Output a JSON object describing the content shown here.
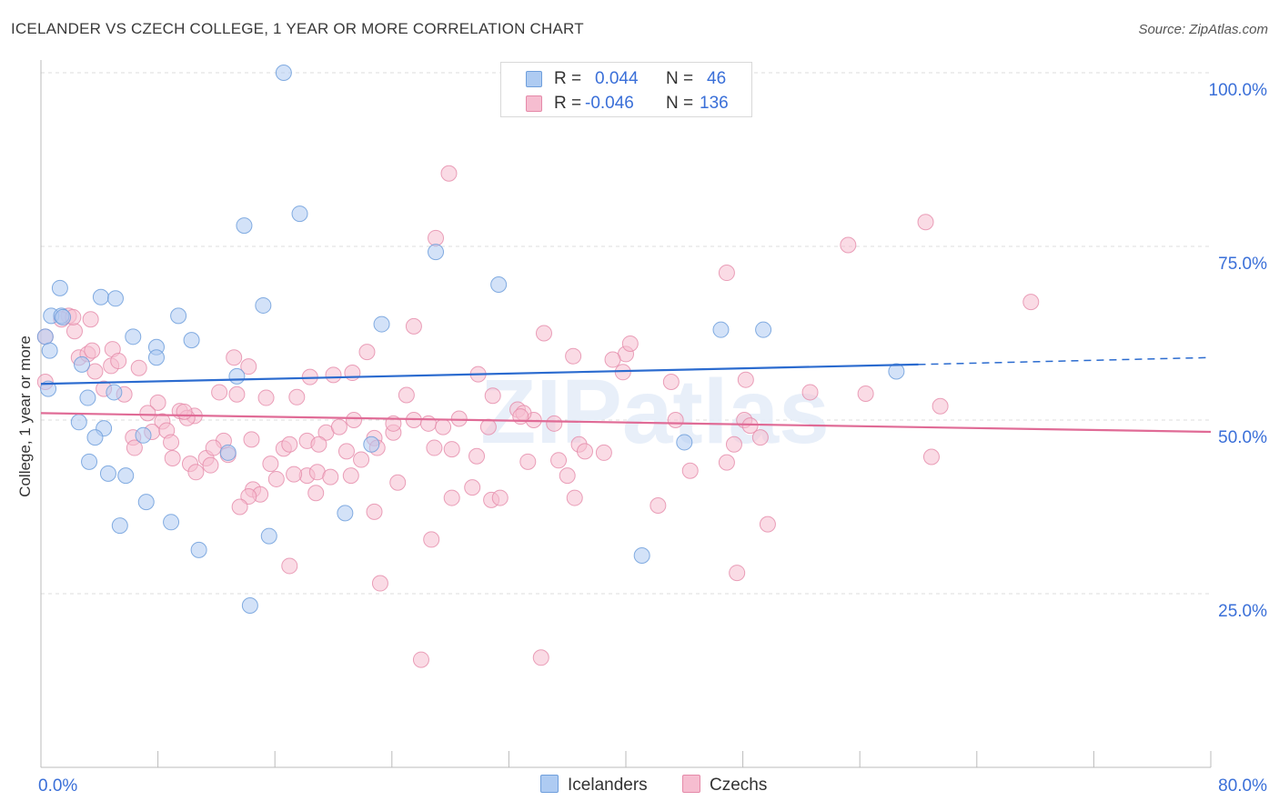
{
  "header": {
    "title": "ICELANDER VS CZECH COLLEGE, 1 YEAR OR MORE CORRELATION CHART",
    "source": "Source: ZipAtlas.com"
  },
  "watermark": "ZIPatlas",
  "stats": [
    {
      "r_label": "R =",
      "r_value": "0.044",
      "n_label": "N =",
      "n_value": "46"
    },
    {
      "r_label": "R =",
      "r_value": "-0.046",
      "n_label": "N =",
      "n_value": "136"
    }
  ],
  "colors": {
    "icelanders_fill": "#aecbf2",
    "icelanders_stroke": "#6f9fdc",
    "icelanders_line": "#2b6bcf",
    "czechs_fill": "#f6bdd0",
    "czechs_stroke": "#e58aa9",
    "czechs_line": "#e06b96",
    "axis_text": "#3a6fd8",
    "grid": "#dcdcdc"
  },
  "chart_data": {
    "type": "scatter",
    "title": "ICELANDER VS CZECH COLLEGE, 1 YEAR OR MORE CORRELATION CHART",
    "xlabel": "",
    "ylabel": "College, 1 year or more",
    "xlim": [
      0,
      80
    ],
    "ylim": [
      2,
      102
    ],
    "x_tick_labels": [
      "0.0%",
      "80.0%"
    ],
    "y_ticks": [
      25,
      50,
      75,
      100
    ],
    "y_tick_labels": [
      "25.0%",
      "50.0%",
      "75.0%",
      "100.0%"
    ],
    "grid": true,
    "legend_placement": "bottom",
    "series": [
      {
        "name": "Icelanders",
        "trend": {
          "x": [
            0,
            60
          ],
          "y": [
            55.2,
            58.0
          ],
          "dashed_extension_to_x": 80,
          "dashed_extension_y": 59.0
        },
        "points": [
          [
            16.6,
            100
          ],
          [
            1.3,
            69
          ],
          [
            4.1,
            67.7
          ],
          [
            5.1,
            67.5
          ],
          [
            0.7,
            65
          ],
          [
            1.4,
            65
          ],
          [
            1.5,
            64.8
          ],
          [
            0.3,
            62
          ],
          [
            0.6,
            60
          ],
          [
            6.3,
            62
          ],
          [
            9.4,
            65
          ],
          [
            10.3,
            61.5
          ],
          [
            7.9,
            60.5
          ],
          [
            7.9,
            59
          ],
          [
            2.8,
            58
          ],
          [
            13.9,
            78
          ],
          [
            17.7,
            79.7
          ],
          [
            27.0,
            74.2
          ],
          [
            31.3,
            69.5
          ],
          [
            15.2,
            66.5
          ],
          [
            23.3,
            63.8
          ],
          [
            46.5,
            63
          ],
          [
            49.4,
            63
          ],
          [
            58.5,
            57
          ],
          [
            0.5,
            54.5
          ],
          [
            3.2,
            53.2
          ],
          [
            5.0,
            54
          ],
          [
            13.4,
            56.3
          ],
          [
            2.6,
            49.7
          ],
          [
            4.3,
            48.8
          ],
          [
            3.7,
            47.5
          ],
          [
            7.0,
            47.8
          ],
          [
            12.8,
            45.3
          ],
          [
            3.3,
            44
          ],
          [
            4.6,
            42.3
          ],
          [
            5.8,
            42
          ],
          [
            22.6,
            46.5
          ],
          [
            7.2,
            38.2
          ],
          [
            5.4,
            34.8
          ],
          [
            8.9,
            35.3
          ],
          [
            15.6,
            33.3
          ],
          [
            20.8,
            36.6
          ],
          [
            10.8,
            31.3
          ],
          [
            41.1,
            30.5
          ],
          [
            14.3,
            23.3
          ],
          [
            44.0,
            46.8
          ]
        ]
      },
      {
        "name": "Czechs",
        "trend": {
          "x": [
            0,
            80
          ],
          "y": [
            51.0,
            48.3
          ]
        },
        "points": [
          [
            27.9,
            85.5
          ],
          [
            27.0,
            76.2
          ],
          [
            60.5,
            78.5
          ],
          [
            55.2,
            75.2
          ],
          [
            46.9,
            71.2
          ],
          [
            67.7,
            67
          ],
          [
            1.9,
            65
          ],
          [
            3.4,
            64.5
          ],
          [
            2.3,
            62.8
          ],
          [
            0.3,
            62
          ],
          [
            25.5,
            63.5
          ],
          [
            34.4,
            62.5
          ],
          [
            2.6,
            59
          ],
          [
            3.2,
            59.5
          ],
          [
            3.5,
            60
          ],
          [
            4.9,
            60.2
          ],
          [
            4.8,
            57.8
          ],
          [
            5.3,
            58.5
          ],
          [
            3.7,
            57
          ],
          [
            6.7,
            57.5
          ],
          [
            13.2,
            59
          ],
          [
            14.2,
            57.7
          ],
          [
            22.3,
            59.8
          ],
          [
            36.4,
            59.2
          ],
          [
            40.0,
            59.5
          ],
          [
            39.1,
            58.7
          ],
          [
            40.3,
            61
          ],
          [
            39.8,
            56.9
          ],
          [
            18.4,
            56.2
          ],
          [
            20.0,
            56.5
          ],
          [
            21.3,
            56.8
          ],
          [
            29.9,
            56.6
          ],
          [
            43.1,
            55.5
          ],
          [
            48.2,
            55.8
          ],
          [
            12.2,
            54
          ],
          [
            15.4,
            53.2
          ],
          [
            17.5,
            53.3
          ],
          [
            25.0,
            53.6
          ],
          [
            30.9,
            53.5
          ],
          [
            52.6,
            54
          ],
          [
            56.4,
            53.8
          ],
          [
            61.5,
            52
          ],
          [
            8.0,
            52.5
          ],
          [
            7.3,
            51
          ],
          [
            9.5,
            51.3
          ],
          [
            10.5,
            50.6
          ],
          [
            8.3,
            49.8
          ],
          [
            7.6,
            48.3
          ],
          [
            8.6,
            48.5
          ],
          [
            10.0,
            50.3
          ],
          [
            6.3,
            47.5
          ],
          [
            21.4,
            50
          ],
          [
            25.5,
            50
          ],
          [
            26.5,
            49.5
          ],
          [
            28.6,
            50.2
          ],
          [
            32.6,
            51.5
          ],
          [
            33.7,
            50
          ],
          [
            35.1,
            49.5
          ],
          [
            43.4,
            50
          ],
          [
            48.1,
            50
          ],
          [
            19.5,
            48.2
          ],
          [
            20.4,
            49
          ],
          [
            22.8,
            47.4
          ],
          [
            24.1,
            48.2
          ],
          [
            30.6,
            49
          ],
          [
            33.0,
            51
          ],
          [
            12.5,
            47
          ],
          [
            8.9,
            46.8
          ],
          [
            14.4,
            47.2
          ],
          [
            16.6,
            45.9
          ],
          [
            17.0,
            46.5
          ],
          [
            18.2,
            47
          ],
          [
            20.9,
            45.5
          ],
          [
            26.9,
            46
          ],
          [
            28.1,
            45.8
          ],
          [
            36.8,
            46.5
          ],
          [
            37.2,
            45.5
          ],
          [
            47.4,
            46.5
          ],
          [
            49.2,
            47.5
          ],
          [
            6.4,
            46
          ],
          [
            9.0,
            44.5
          ],
          [
            10.2,
            43.7
          ],
          [
            11.3,
            44.5
          ],
          [
            11.6,
            43.5
          ],
          [
            12.8,
            45
          ],
          [
            15.7,
            43.7
          ],
          [
            21.9,
            44.3
          ],
          [
            23.0,
            46
          ],
          [
            29.8,
            44.8
          ],
          [
            33.3,
            44
          ],
          [
            46.9,
            43.9
          ],
          [
            60.9,
            44.7
          ],
          [
            36.0,
            42
          ],
          [
            44.4,
            42.7
          ],
          [
            10.6,
            42.5
          ],
          [
            16.1,
            41.5
          ],
          [
            18.2,
            42
          ],
          [
            18.9,
            42.5
          ],
          [
            19.8,
            41.8
          ],
          [
            24.4,
            41
          ],
          [
            14.5,
            40
          ],
          [
            15.0,
            39.3
          ],
          [
            17.3,
            42.2
          ],
          [
            18.8,
            39.5
          ],
          [
            28.1,
            38.8
          ],
          [
            29.5,
            40.3
          ],
          [
            30.8,
            38.5
          ],
          [
            31.4,
            38.8
          ],
          [
            14.2,
            39
          ],
          [
            36.5,
            38.8
          ],
          [
            42.2,
            37.7
          ],
          [
            13.6,
            37.5
          ],
          [
            22.8,
            36.8
          ],
          [
            49.7,
            35
          ],
          [
            17.0,
            29
          ],
          [
            26.7,
            32.8
          ],
          [
            23.2,
            26.5
          ],
          [
            47.6,
            28
          ],
          [
            26.0,
            15.5
          ],
          [
            34.2,
            15.8
          ],
          [
            0.3,
            55.5
          ],
          [
            1.4,
            64.5
          ],
          [
            2.2,
            64.8
          ],
          [
            4.3,
            54.5
          ],
          [
            5.7,
            53.7
          ],
          [
            9.8,
            51.2
          ],
          [
            13.4,
            53.7
          ],
          [
            24.1,
            49.5
          ],
          [
            35.4,
            44.2
          ],
          [
            48.5,
            49.2
          ],
          [
            32.8,
            50.5
          ],
          [
            19.0,
            46.5
          ],
          [
            27.5,
            49.0
          ],
          [
            11.8,
            46.0
          ],
          [
            38.5,
            45.3
          ],
          [
            21.2,
            42.0
          ]
        ]
      }
    ]
  },
  "legend": [
    {
      "label": "Icelanders"
    },
    {
      "label": "Czechs"
    }
  ]
}
